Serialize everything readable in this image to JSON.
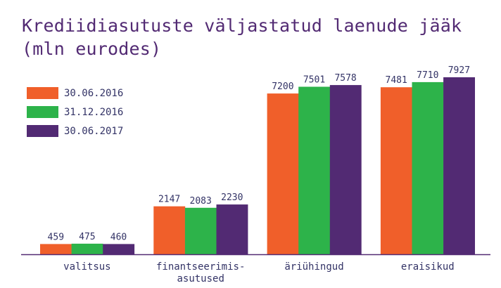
{
  "chart_data": {
    "type": "bar",
    "title": "Krediidiasutuste väljastatud laenude jääk",
    "subtitle": "(mln eurodes)",
    "title_lines": [
      "Krediidiasutuste väljastatud laenude jääk",
      "(mln eurodes)"
    ],
    "xlabel": "",
    "ylabel": "",
    "categories": [
      [
        "valitsus"
      ],
      [
        "finantseerimis-",
        "asutused"
      ],
      [
        "äriühingud"
      ],
      [
        "eraisikud"
      ]
    ],
    "series": [
      {
        "name": "30.06.2016",
        "color": "#f05f2a",
        "values": [
          459,
          2147,
          7200,
          7481
        ]
      },
      {
        "name": "31.12.2016",
        "color": "#2db34a",
        "values": [
          475,
          2083,
          7501,
          7710
        ]
      },
      {
        "name": "30.06.2017",
        "color": "#522a73",
        "values": [
          460,
          2230,
          7578,
          7927
        ]
      }
    ],
    "ylim": [
      0,
      7927
    ],
    "grid": false,
    "legend_position": "top-left",
    "axis_color": "#522a73",
    "text_color": "#333366"
  }
}
